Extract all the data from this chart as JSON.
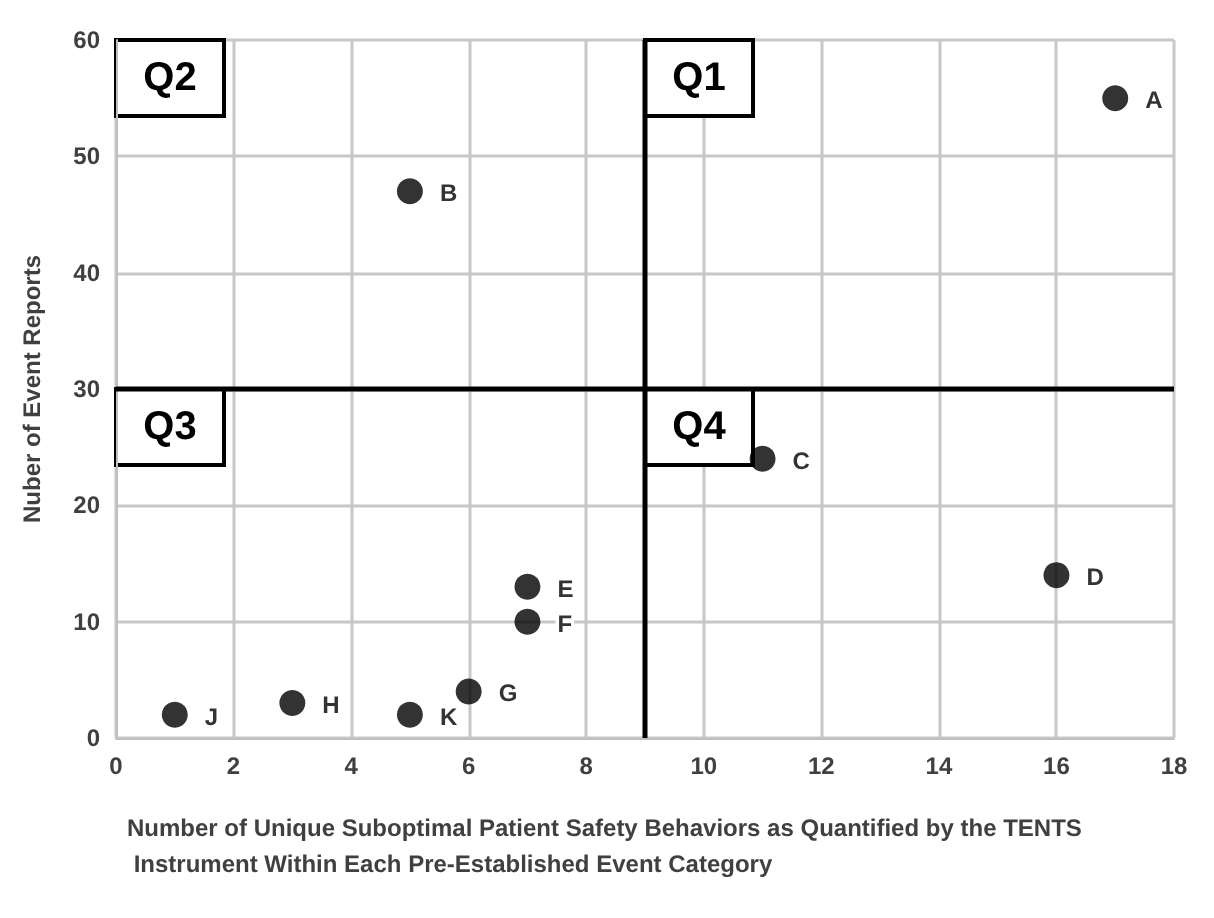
{
  "chart_data": {
    "type": "scatter",
    "xlabel": "Number of Unique Suboptimal Patient Safety Behaviors as Quantified by the TENTS Instrument Within Each Pre-Established Event Category",
    "ylabel": "Nuber of Event Reports",
    "x": [
      17,
      5,
      11,
      16,
      7,
      7,
      6,
      3,
      1,
      5
    ],
    "series": [
      {
        "color": "#000000",
        "values": [
          55,
          47,
          24,
          14,
          13,
          10,
          4,
          3,
          2,
          2
        ]
      }
    ],
    "marker": "circle",
    "xlim": [
      0,
      18
    ],
    "xticks": [
      0,
      2,
      4,
      6,
      8,
      10,
      12,
      14,
      16,
      18
    ],
    "ylim": [
      0,
      60
    ],
    "yticks": [
      0,
      10,
      20,
      30,
      40,
      50,
      60
    ],
    "grid": true,
    "ref_lines": [
      {
        "axis": "x",
        "value": 9,
        "color": "#000000"
      },
      {
        "axis": "y",
        "value": 30,
        "color": "#000000"
      }
    ],
    "annotations": [
      {
        "text": "A",
        "x": 17,
        "y": 55
      },
      {
        "text": "B",
        "x": 5,
        "y": 47
      },
      {
        "text": "C",
        "x": 11,
        "y": 24
      },
      {
        "text": "D",
        "x": 16,
        "y": 14
      },
      {
        "text": "E",
        "x": 7,
        "y": 13
      },
      {
        "text": "F",
        "x": 7,
        "y": 10
      },
      {
        "text": "G",
        "x": 6,
        "y": 4
      },
      {
        "text": "H",
        "x": 3,
        "y": 3
      },
      {
        "text": "J",
        "x": 1,
        "y": 2
      },
      {
        "text": "K",
        "x": 5,
        "y": 2
      },
      "Q2",
      "Q1",
      "Q3",
      "Q4"
    ]
  }
}
